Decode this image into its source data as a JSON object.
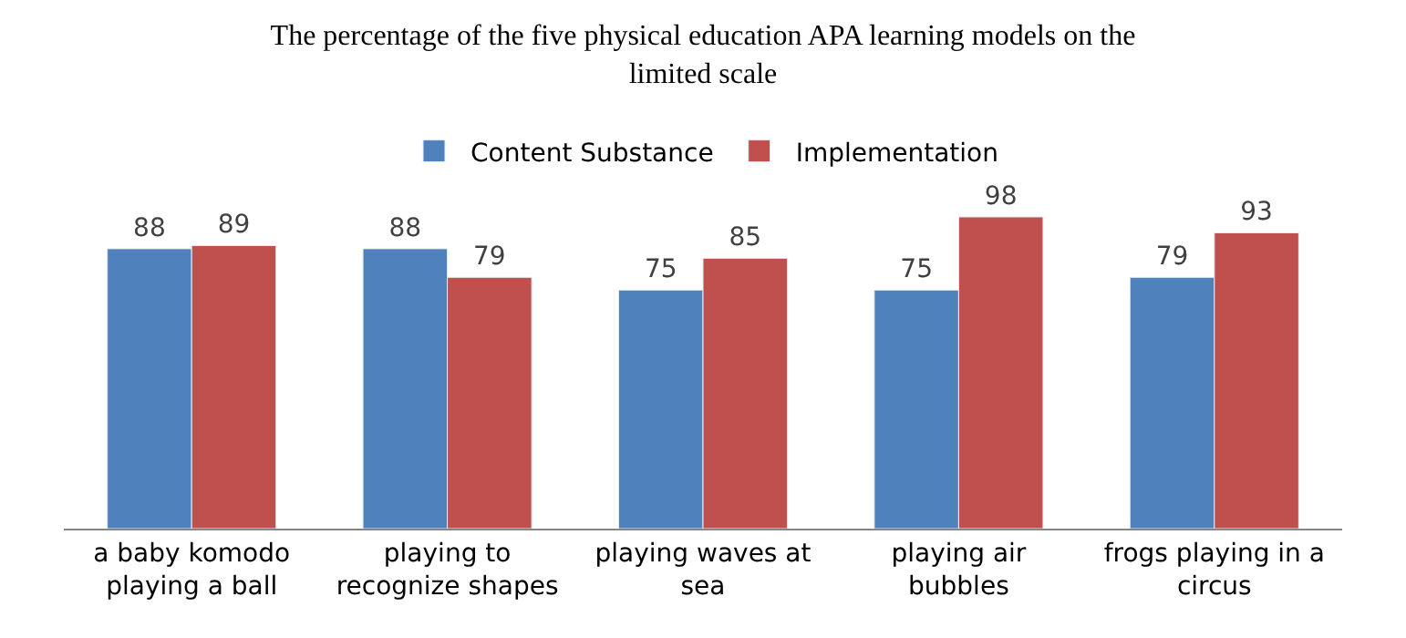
{
  "chart_data": {
    "type": "bar",
    "title": "The percentage of the five physical education APA learning models on the limited scale",
    "categories": [
      "a baby komodo playing a ball",
      "playing to recognize shapes",
      "playing waves at sea",
      "playing air bubbles",
      "frogs playing in a circus"
    ],
    "series": [
      {
        "name": "Content Substance",
        "color": "#4f81bd",
        "values": [
          88,
          88,
          75,
          75,
          79
        ]
      },
      {
        "name": "Implementation",
        "color": "#c0504d",
        "values": [
          89,
          79,
          85,
          98,
          93
        ]
      }
    ],
    "data_labels": true,
    "legend": "top"
  }
}
